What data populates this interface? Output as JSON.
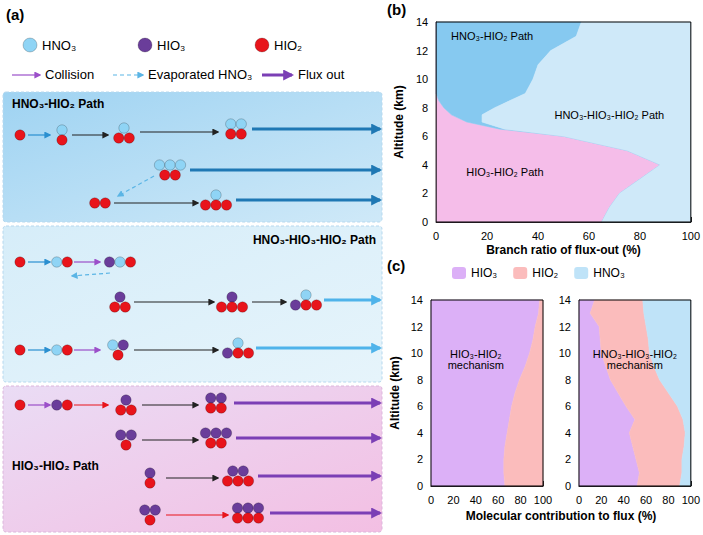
{
  "diagram": {
    "label": "(a)",
    "legend": {
      "molecules": [
        {
          "name": "HNO₃",
          "color": "#8fd4f5"
        },
        {
          "name": "HIO₃",
          "color": "#6a3d9a"
        },
        {
          "name": "HIO₂",
          "color": "#e8141b"
        }
      ],
      "arrows": [
        "Collision",
        "Evaporated HNO₃",
        "Flux out"
      ]
    },
    "panels": [
      {
        "title": "HNO₃-HIO₂ Path"
      },
      {
        "title": "HNO₃-HIO₃-HIO₂ Path"
      },
      {
        "title": "HIO₃-HIO₂ Path"
      }
    ]
  },
  "chart_data": [
    {
      "label": "(b)",
      "type": "area",
      "orientation": "horizontal",
      "stacked": true,
      "grid": false,
      "x_label": "Branch ratio of flux-out (%)",
      "y_label": "Altitude (km)",
      "xlim": [
        0,
        100
      ],
      "xticks": [
        0,
        20,
        40,
        60,
        80,
        100
      ],
      "ylim": [
        0,
        14
      ],
      "yticks": [
        0,
        2,
        4,
        6,
        8,
        10,
        12,
        14
      ],
      "y": [
        0,
        1,
        2,
        3,
        4,
        5,
        6,
        6.5,
        7,
        7.5,
        8,
        8.5,
        9,
        10,
        11,
        12,
        13,
        14
      ],
      "series": [
        {
          "name": "HIO₃-HIO₂ Path",
          "color": "#f5bde9",
          "values": [
            65,
            68,
            72,
            80,
            88,
            75,
            50,
            25,
            12,
            6,
            3,
            1,
            0,
            0,
            0,
            0,
            0,
            0
          ]
        },
        {
          "name": "HNO₃-HIO₂ Path",
          "color": "#86c9f0",
          "values": [
            0,
            0,
            0,
            0,
            0,
            0,
            0,
            2,
            6,
            12,
            20,
            28,
            35,
            38,
            40,
            45,
            55,
            57
          ]
        },
        {
          "name": "HNO₃-HIO₃-HIO₂ Path",
          "color": "#cfe9f9",
          "values": [
            35,
            32,
            28,
            20,
            12,
            25,
            50,
            73,
            82,
            82,
            77,
            71,
            65,
            62,
            60,
            55,
            45,
            43
          ]
        }
      ]
    },
    {
      "label": "(c)",
      "type": "area",
      "orientation": "horizontal",
      "stacked": true,
      "grid": false,
      "title": "HIO₃-HIO₂ mechanism",
      "x_label": "Molecular contribution to flux (%)",
      "y_label": "Altitude (km)",
      "xlim": [
        0,
        100
      ],
      "xticks": [
        0,
        20,
        40,
        60,
        80,
        100
      ],
      "ylim": [
        0,
        14
      ],
      "yticks": [
        0,
        2,
        4,
        6,
        8,
        10,
        12,
        14
      ],
      "y": [
        0,
        1,
        2,
        3,
        4,
        5,
        6,
        7,
        8,
        9,
        10,
        11,
        12,
        13,
        14
      ],
      "series": [
        {
          "name": "HIO₃",
          "color": "#dcb0f7",
          "values": [
            66,
            65,
            65,
            66,
            68,
            70,
            72,
            75,
            79,
            84,
            88,
            91,
            93,
            96,
            97
          ]
        },
        {
          "name": "HIO₂",
          "color": "#fbbcbc",
          "values": [
            34,
            35,
            35,
            34,
            32,
            30,
            28,
            25,
            21,
            16,
            12,
            9,
            7,
            4,
            3
          ]
        }
      ]
    },
    {
      "type": "area",
      "orientation": "horizontal",
      "stacked": true,
      "grid": false,
      "legend": "top",
      "title": "HNO₃-HIO₃-HIO₂ mechanism",
      "xlim": [
        0,
        100
      ],
      "xticks": [
        0,
        20,
        40,
        60,
        80,
        100
      ],
      "ylim": [
        0,
        14
      ],
      "yticks": [
        0,
        2,
        4,
        6,
        8,
        10,
        12,
        14
      ],
      "y": [
        0,
        1,
        2,
        3,
        4,
        5,
        6,
        7,
        8,
        9,
        10,
        11,
        12,
        13,
        14
      ],
      "series": [
        {
          "name": "HIO₃",
          "color": "#dcb0f7",
          "values": [
            52,
            54,
            51,
            48,
            45,
            50,
            42,
            35,
            28,
            24,
            20,
            19,
            18,
            10,
            14
          ]
        },
        {
          "name": "HIO₂",
          "color": "#fbbcbc",
          "values": [
            38,
            38,
            41,
            46,
            50,
            43,
            46,
            45,
            44,
            43,
            43,
            43,
            42,
            48,
            43
          ]
        },
        {
          "name": "HNO₃",
          "color": "#bfe3f8",
          "values": [
            10,
            8,
            8,
            6,
            5,
            7,
            12,
            20,
            28,
            33,
            37,
            38,
            40,
            42,
            43
          ]
        }
      ]
    }
  ]
}
